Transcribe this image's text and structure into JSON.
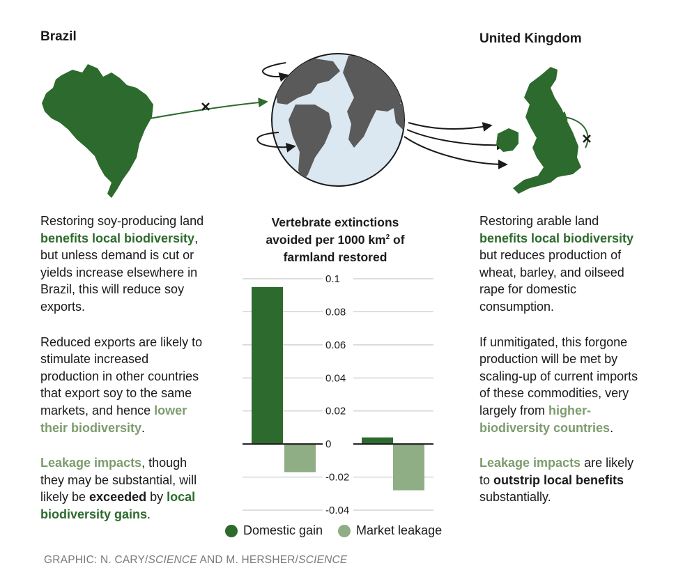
{
  "left": {
    "title": "Brazil",
    "p1": [
      {
        "t": "Restoring soy-producing land ",
        "s": ""
      },
      {
        "t": "benefits local biodiversity",
        "s": "dg"
      },
      {
        "t": ", but unless demand is cut or yields increase elsewhere in Brazil, this will reduce soy exports.",
        "s": ""
      }
    ],
    "p2": [
      {
        "t": "Reduced exports are likely to stimulate increased production in other coun­tries that export soy to the same markets, and hence ",
        "s": ""
      },
      {
        "t": "lower their biodiversity",
        "s": "lg"
      },
      {
        "t": ".",
        "s": ""
      }
    ],
    "p3": [
      {
        "t": "Leakage impacts",
        "s": "lg"
      },
      {
        "t": ", though they may be substantial, will likely be ",
        "s": ""
      },
      {
        "t": "exceeded",
        "s": "b"
      },
      {
        "t": " by ",
        "s": ""
      },
      {
        "t": "local biodiversity gains",
        "s": "dg"
      },
      {
        "t": ".",
        "s": ""
      }
    ]
  },
  "right": {
    "title": "United Kingdom",
    "p1": [
      {
        "t": "Restoring arable land ",
        "s": ""
      },
      {
        "t": "benefits local biodiversity",
        "s": "dg"
      },
      {
        "t": " but reduces production of wheat, barley, and oilseed rape for domestic consumption.",
        "s": ""
      }
    ],
    "p2": [
      {
        "t": "If unmitigated, this forgone production will be met by scaling-up of current imports of these commodities, very largely from ",
        "s": ""
      },
      {
        "t": "higher-biodiversity countries",
        "s": "lg"
      },
      {
        "t": ".",
        "s": ""
      }
    ],
    "p3": [
      {
        "t": "Leakage impacts",
        "s": "lg"
      },
      {
        "t": " are likely to ",
        "s": ""
      },
      {
        "t": "outstrip local benefits",
        "s": "b"
      },
      {
        "t": " substantially.",
        "s": ""
      }
    ]
  },
  "chart_data": {
    "type": "bar",
    "title_line1": "Vertebrate extinctions",
    "title_line2_pre": "avoided per 1000 km",
    "title_line2_sup": "2",
    "title_line2_post": " of",
    "title_line3": "farmland restored",
    "categories": [
      "Brazil",
      "United Kingdom"
    ],
    "series": [
      {
        "name": "Domestic gain",
        "values": [
          0.095,
          0.004
        ],
        "color": "#2d6a2d"
      },
      {
        "name": "Market leakage",
        "values": [
          -0.017,
          -0.028
        ],
        "color": "#8fae86"
      }
    ],
    "ylim": [
      -0.04,
      0.1
    ],
    "ticks": [
      {
        "v": 0.1,
        "label": "0.1"
      },
      {
        "v": 0.08,
        "label": "0.08"
      },
      {
        "v": 0.06,
        "label": "0.06"
      },
      {
        "v": 0.04,
        "label": "0.04"
      },
      {
        "v": 0.02,
        "label": "0.02"
      },
      {
        "v": 0,
        "label": "0"
      },
      {
        "v": -0.02,
        "label": "-0.02"
      },
      {
        "v": -0.04,
        "label": "-0.04"
      }
    ],
    "legend_position": "bottom"
  },
  "colors": {
    "dark_green": "#2d6a2d",
    "light_green": "#8fae86",
    "ocean": "#dbe8f1",
    "land_gray": "#5a5a5a"
  },
  "credit": {
    "pre": "GRAPHIC: N. CARY/",
    "i1": "SCIENCE",
    "mid": " AND M. HERSHER/",
    "i2": "SCIENCE"
  }
}
